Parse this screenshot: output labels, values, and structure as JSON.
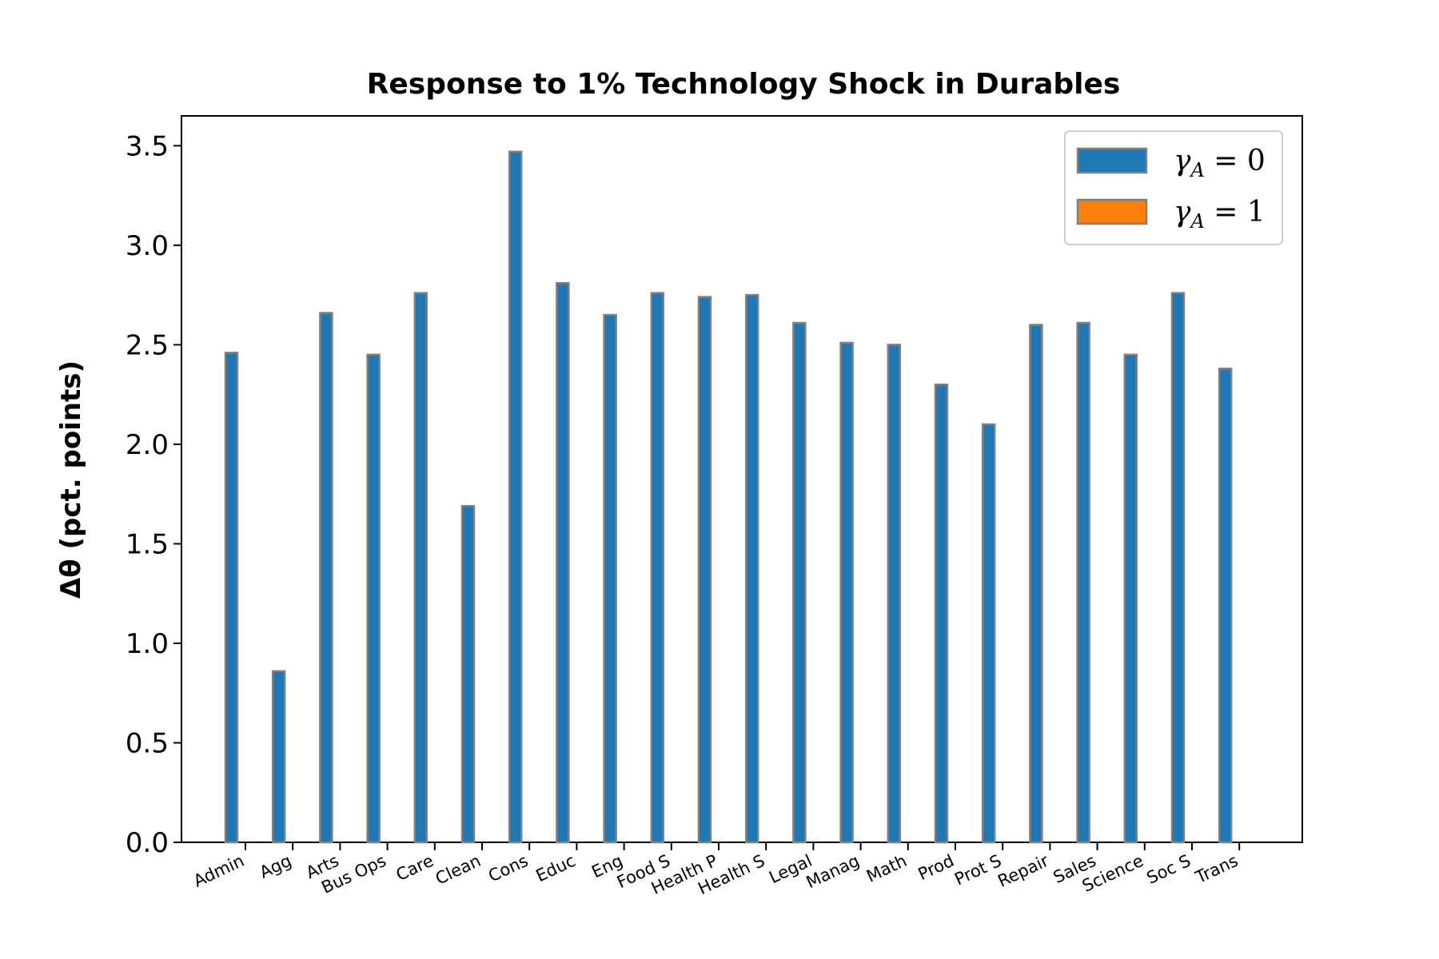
{
  "chart_data": {
    "type": "bar",
    "title": "Response to 1% Technology Shock in Durables",
    "ylabel": "Δθ (pct. points)",
    "xlabel": "",
    "ylim": [
      0,
      3.65
    ],
    "yticks": [
      "0.0",
      "0.5",
      "1.0",
      "1.5",
      "2.0",
      "2.5",
      "3.0",
      "3.5"
    ],
    "ytick_values": [
      0,
      0.5,
      1.0,
      1.5,
      2.0,
      2.5,
      3.0,
      3.5
    ],
    "categories": [
      "Admin",
      "Agg",
      "Arts",
      "Bus Ops",
      "Care",
      "Clean",
      "Cons",
      "Educ",
      "Eng",
      "Food S",
      "Health P",
      "Health S",
      "Legal",
      "Manag",
      "Math",
      "Prod",
      "Prot S",
      "Repair",
      "Sales",
      "Science",
      "Soc S",
      "Trans"
    ],
    "series": [
      {
        "name": "γA = 0",
        "color": "#1f77b4",
        "values": [
          2.46,
          0.86,
          2.66,
          2.45,
          2.76,
          1.69,
          3.47,
          2.81,
          2.65,
          2.76,
          2.74,
          2.75,
          2.61,
          2.51,
          2.5,
          2.3,
          2.1,
          2.6,
          2.61,
          2.45,
          2.76,
          2.38
        ]
      },
      {
        "name": "γA = 1",
        "color": "#ff7f0e",
        "values": [
          0,
          0,
          0,
          0,
          0,
          0,
          0,
          0,
          0,
          0,
          0,
          0,
          0,
          0,
          0,
          0,
          0,
          0,
          0,
          0,
          0,
          0
        ]
      }
    ],
    "bar_edge_color": "#808080",
    "grid": false,
    "legend_position": "top-right",
    "legend": [
      {
        "symbol": "γ",
        "sub": "A",
        "rest": " = 0",
        "color": "#1f77b4"
      },
      {
        "symbol": "γ",
        "sub": "A",
        "rest": " = 1",
        "color": "#ff7f0e"
      }
    ]
  }
}
